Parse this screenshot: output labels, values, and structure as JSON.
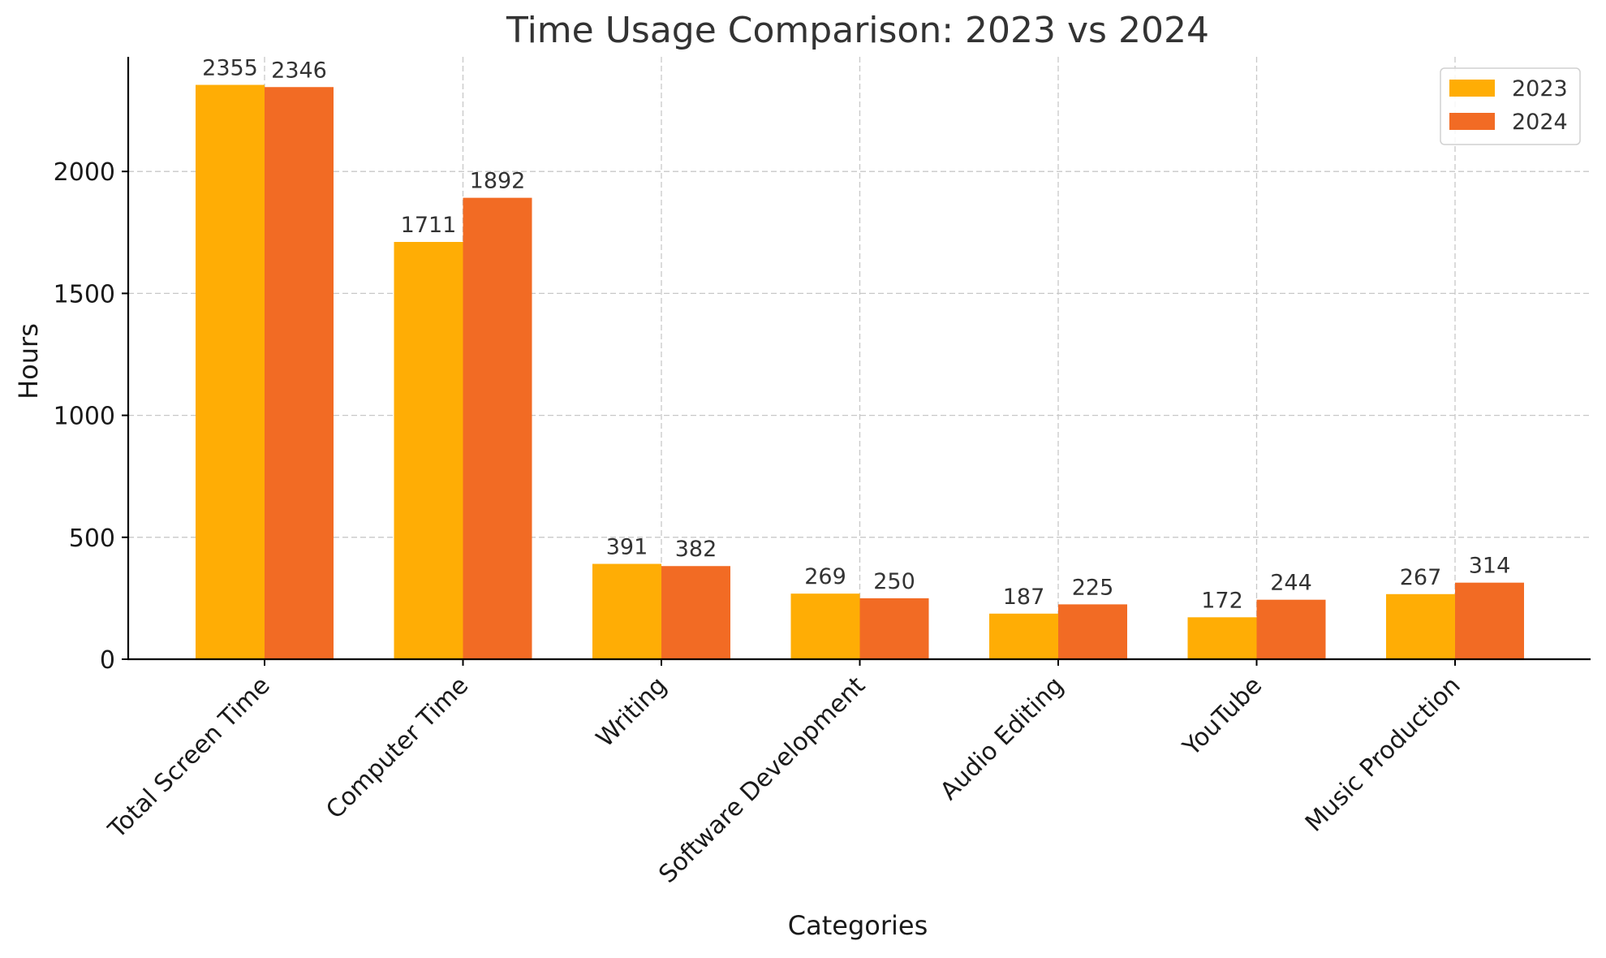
{
  "chart_data": {
    "type": "bar",
    "title": "Time Usage Comparison: 2023 vs 2024",
    "xlabel": "Categories",
    "ylabel": "Hours",
    "categories": [
      "Total Screen Time",
      "Computer Time",
      "Writing",
      "Software Development",
      "Audio Editing",
      "YouTube",
      "Music Production"
    ],
    "series": [
      {
        "name": "2023",
        "color": "#FFAD05",
        "values": [
          2355,
          1711,
          391,
          269,
          187,
          172,
          267
        ]
      },
      {
        "name": "2024",
        "color": "#F26B24",
        "values": [
          2346,
          1892,
          382,
          250,
          225,
          244,
          314
        ]
      }
    ],
    "ylim": [
      0,
      2470
    ],
    "yticks": [
      0,
      500,
      1000,
      1500,
      2000
    ],
    "grid": true,
    "legend": "top-right"
  }
}
